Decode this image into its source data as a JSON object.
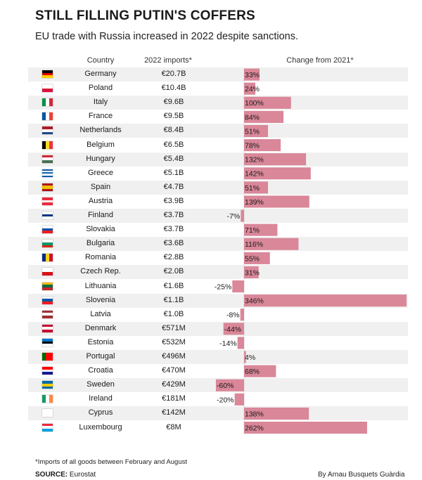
{
  "title": "STILL FILLING PUTIN'S COFFERS",
  "subtitle": "EU trade with Russia increased in 2022 despite sanctions.",
  "headers": {
    "country": "Country",
    "imports": "2022 imports*",
    "change": "Change from 2021*"
  },
  "footnote": "*Imports of all goods between February and August",
  "source_label": "SOURCE:",
  "source_value": "Eurostat",
  "byline": "By Arnau Busquets Guàrdia",
  "colors": {
    "bar": "#d98799",
    "row_shade": "#f0f0f0"
  },
  "chart_data": {
    "type": "table",
    "categories": [
      "Germany",
      "Poland",
      "Italy",
      "France",
      "Netherlands",
      "Belgium",
      "Hungary",
      "Greece",
      "Spain",
      "Austria",
      "Finland",
      "Slovakia",
      "Bulgaria",
      "Romania",
      "Czech Rep.",
      "Lithuania",
      "Slovenia",
      "Latvia",
      "Denmark",
      "Estonia",
      "Portugal",
      "Croatia",
      "Sweden",
      "Ireland",
      "Cyprus",
      "Luxembourg"
    ],
    "imports": [
      "€20.7B",
      "€10.4B",
      "€9.6B",
      "€9.5B",
      "€8.4B",
      "€6.5B",
      "€5.4B",
      "€5.1B",
      "€4.7B",
      "€3.9B",
      "€3.7B",
      "€3.7B",
      "€3.6B",
      "€2.8B",
      "€2.0B",
      "€1.6B",
      "€1.1B",
      "€1.0B",
      "€571M",
      "€532M",
      "€496M",
      "€470M",
      "€429M",
      "€181M",
      "€142M",
      "€8M"
    ],
    "values": [
      33,
      24,
      100,
      84,
      51,
      78,
      132,
      142,
      51,
      139,
      -7,
      71,
      116,
      55,
      31,
      -25,
      346,
      -8,
      -44,
      -14,
      4,
      68,
      -60,
      -20,
      138,
      262
    ],
    "value_labels": [
      "33%",
      "24%",
      "100%",
      "84%",
      "51%",
      "78%",
      "132%",
      "142%",
      "51%",
      "139%",
      "-7%",
      "71%",
      "116%",
      "55%",
      "31%",
      "-25%",
      "346%",
      "-8%",
      "-44%",
      "-14%",
      "4%",
      "68%",
      "-60%",
      "-20%",
      "138%",
      "262%"
    ],
    "flags": [
      {
        "dir": "h",
        "colors": [
          "#000000",
          "#dd0000",
          "#ffce00"
        ]
      },
      {
        "dir": "h",
        "colors": [
          "#ffffff",
          "#dc143c"
        ]
      },
      {
        "dir": "v",
        "colors": [
          "#009246",
          "#ffffff",
          "#ce2b37"
        ]
      },
      {
        "dir": "v",
        "colors": [
          "#0055a4",
          "#ffffff",
          "#ef4135"
        ]
      },
      {
        "dir": "h",
        "colors": [
          "#ae1c28",
          "#ffffff",
          "#21468b"
        ]
      },
      {
        "dir": "v",
        "colors": [
          "#000000",
          "#fdda24",
          "#ef3340"
        ]
      },
      {
        "dir": "h",
        "colors": [
          "#ce2939",
          "#ffffff",
          "#477050"
        ]
      },
      {
        "dir": "h",
        "colors": [
          "#0d5eaf",
          "#ffffff",
          "#0d5eaf",
          "#ffffff",
          "#0d5eaf"
        ]
      },
      {
        "dir": "h",
        "colors": [
          "#aa151b",
          "#f1bf00",
          "#f1bf00",
          "#aa151b"
        ]
      },
      {
        "dir": "h",
        "colors": [
          "#ed2939",
          "#ffffff",
          "#ed2939"
        ]
      },
      {
        "dir": "h",
        "colors": [
          "#ffffff",
          "#003580",
          "#ffffff"
        ]
      },
      {
        "dir": "h",
        "colors": [
          "#ffffff",
          "#0b4ea2",
          "#ee1c25"
        ]
      },
      {
        "dir": "h",
        "colors": [
          "#ffffff",
          "#00966e",
          "#d62612"
        ]
      },
      {
        "dir": "v",
        "colors": [
          "#002b7f",
          "#fcd116",
          "#ce1126"
        ]
      },
      {
        "dir": "h",
        "colors": [
          "#ffffff",
          "#d7141a"
        ]
      },
      {
        "dir": "h",
        "colors": [
          "#fdb913",
          "#006a44",
          "#c1272d"
        ]
      },
      {
        "dir": "h",
        "colors": [
          "#ffffff",
          "#0056a3",
          "#ed1c24"
        ]
      },
      {
        "dir": "h",
        "colors": [
          "#9e3039",
          "#ffffff",
          "#9e3039"
        ]
      },
      {
        "dir": "h",
        "colors": [
          "#c60c30",
          "#ffffff",
          "#c60c30"
        ]
      },
      {
        "dir": "h",
        "colors": [
          "#0072ce",
          "#000000",
          "#ffffff"
        ]
      },
      {
        "dir": "v",
        "colors": [
          "#006600",
          "#ff0000",
          "#ff0000"
        ]
      },
      {
        "dir": "h",
        "colors": [
          "#ff0000",
          "#ffffff",
          "#171796"
        ]
      },
      {
        "dir": "h",
        "colors": [
          "#006aa7",
          "#fecc00",
          "#006aa7"
        ]
      },
      {
        "dir": "v",
        "colors": [
          "#169b62",
          "#ffffff",
          "#ff883e"
        ]
      },
      {
        "dir": "h",
        "colors": [
          "#ffffff",
          "#ffffff"
        ]
      },
      {
        "dir": "h",
        "colors": [
          "#ed2939",
          "#ffffff",
          "#00a1de"
        ]
      }
    ]
  }
}
